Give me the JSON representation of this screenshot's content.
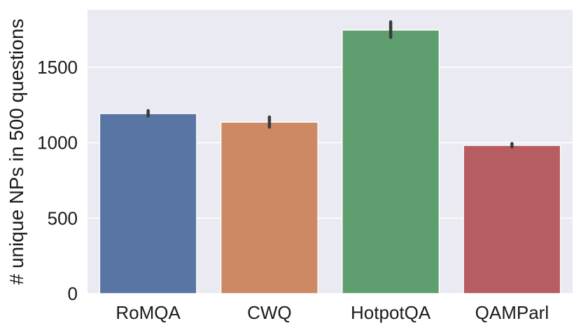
{
  "chart_data": {
    "type": "bar",
    "title": "",
    "xlabel": "",
    "ylabel": "# unique NPs in 500 questions",
    "categories": [
      "RoMQA",
      "CWQ",
      "HotpotQA",
      "QAMParl"
    ],
    "values": [
      1193,
      1136,
      1746,
      982
    ],
    "error_bars": [
      {
        "low": 1177,
        "high": 1212
      },
      {
        "low": 1103,
        "high": 1170
      },
      {
        "low": 1697,
        "high": 1800
      },
      {
        "low": 972,
        "high": 994
      }
    ],
    "colors": [
      "#5975a4",
      "#cc8963",
      "#5f9e6e",
      "#b55d60"
    ],
    "ylim": [
      0,
      1880
    ],
    "yticks": [
      0,
      500,
      1000,
      1500
    ],
    "grid": true,
    "background": "#eaeaf2",
    "gridline_color": "#ffffff",
    "errorbar_color": "#3b3b3b"
  }
}
